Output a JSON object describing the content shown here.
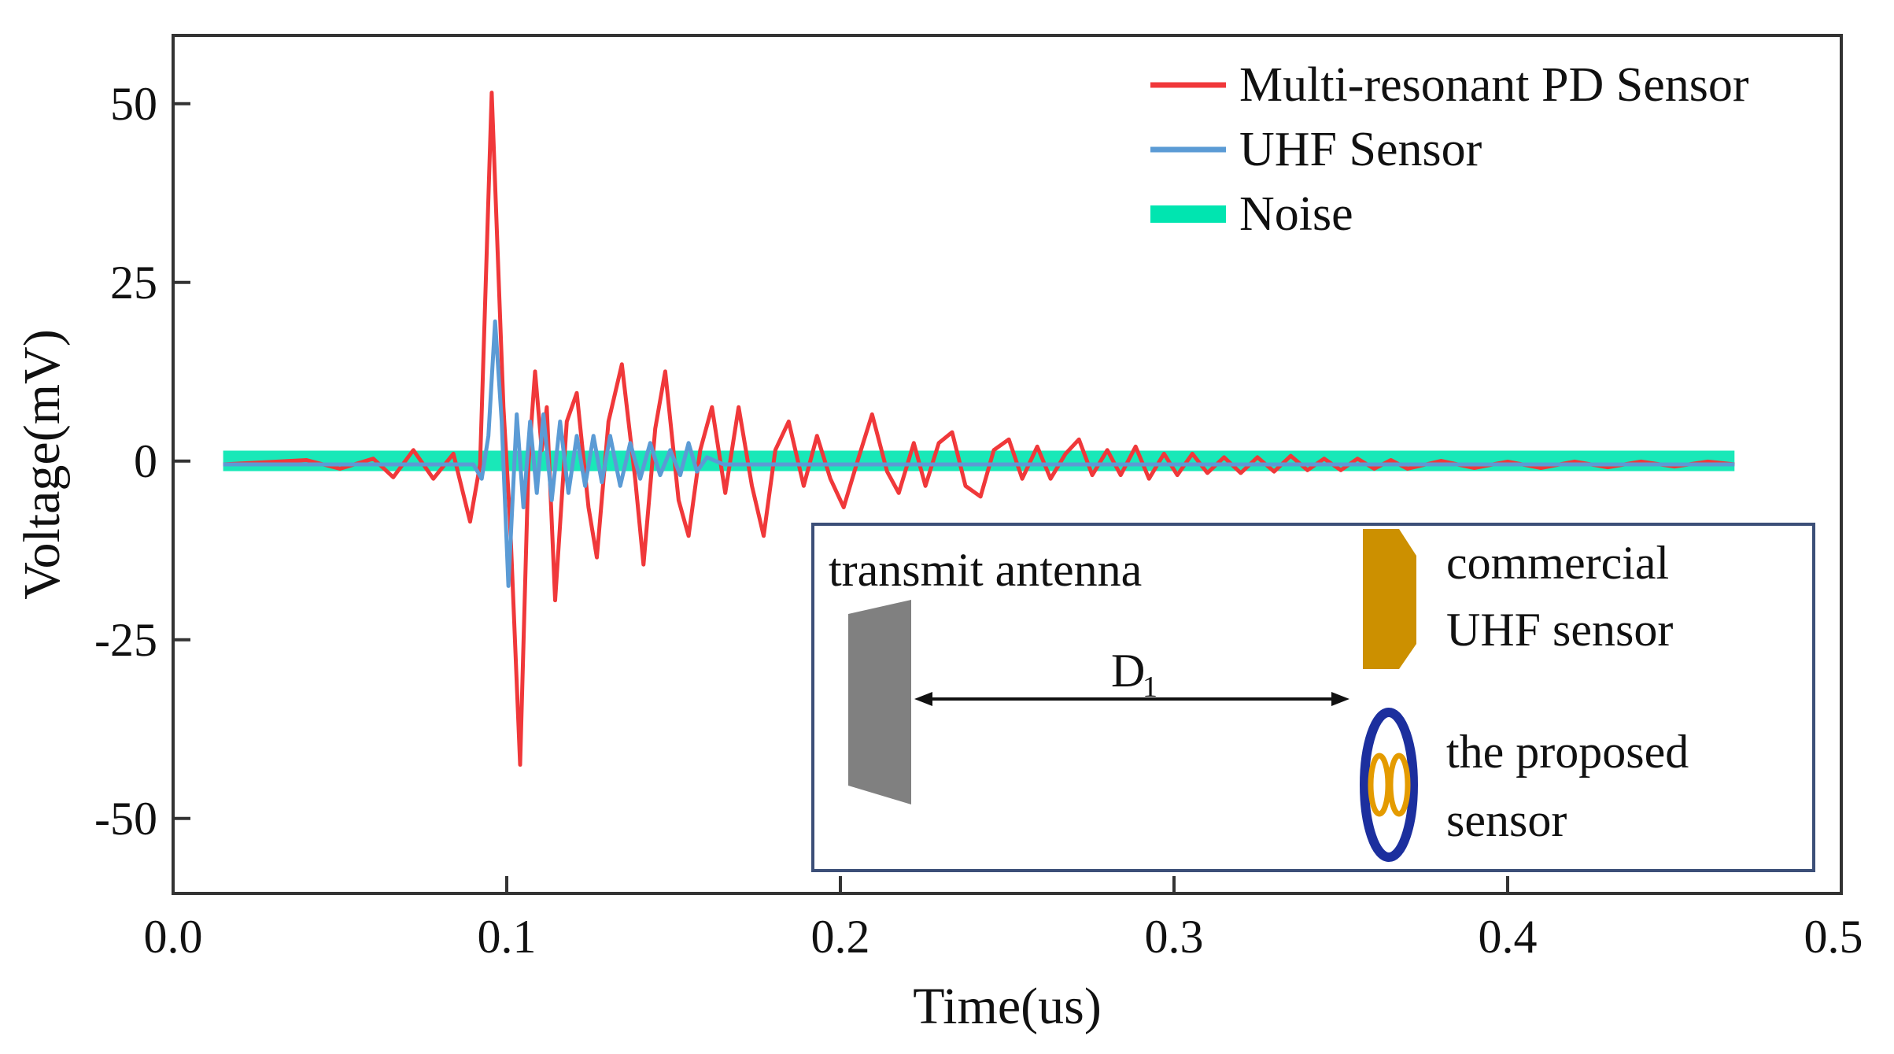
{
  "chart_data": {
    "type": "line",
    "xlabel": "Time(us)",
    "ylabel": "Voltage(mV)",
    "xlim": [
      0.0,
      0.5
    ],
    "ylim": [
      -60,
      60
    ],
    "x_ticks": [
      "0.0",
      "0.1",
      "0.2",
      "0.3",
      "0.4",
      "0.5"
    ],
    "y_ticks": [
      "50",
      "25",
      "0",
      "-25",
      "-50"
    ],
    "grid": false,
    "legend_position": "top-right",
    "series": [
      {
        "name": "Multi-resonant PD Sensor",
        "color": "#f0383a",
        "points": [
          [
            0.015,
            0.0
          ],
          [
            0.04,
            0.6
          ],
          [
            0.05,
            -0.6
          ],
          [
            0.06,
            0.8
          ],
          [
            0.066,
            -1.8
          ],
          [
            0.072,
            2.0
          ],
          [
            0.078,
            -2.0
          ],
          [
            0.084,
            1.5
          ],
          [
            0.089,
            -8.0
          ],
          [
            0.092,
            0.0
          ],
          [
            0.0955,
            52.0
          ],
          [
            0.099,
            8.0
          ],
          [
            0.101,
            -8.0
          ],
          [
            0.104,
            -42.0
          ],
          [
            0.1065,
            0.0
          ],
          [
            0.1085,
            13.0
          ],
          [
            0.1105,
            2.0
          ],
          [
            0.112,
            8.0
          ],
          [
            0.1145,
            -19.0
          ],
          [
            0.118,
            6.0
          ],
          [
            0.121,
            10.0
          ],
          [
            0.1245,
            -6.0
          ],
          [
            0.127,
            -13.0
          ],
          [
            0.1305,
            6.0
          ],
          [
            0.1345,
            14.0
          ],
          [
            0.1385,
            -2.0
          ],
          [
            0.141,
            -14.0
          ],
          [
            0.1445,
            5.0
          ],
          [
            0.1475,
            13.0
          ],
          [
            0.1515,
            -5.0
          ],
          [
            0.1545,
            -10.0
          ],
          [
            0.158,
            2.0
          ],
          [
            0.1615,
            8.0
          ],
          [
            0.1655,
            -4.0
          ],
          [
            0.1695,
            8.0
          ],
          [
            0.1735,
            -3.0
          ],
          [
            0.177,
            -10.0
          ],
          [
            0.1805,
            2.0
          ],
          [
            0.1845,
            6.0
          ],
          [
            0.189,
            -3.0
          ],
          [
            0.193,
            4.0
          ],
          [
            0.197,
            -2.0
          ],
          [
            0.201,
            -6.0
          ],
          [
            0.2055,
            1.0
          ],
          [
            0.2095,
            7.0
          ],
          [
            0.214,
            -1.0
          ],
          [
            0.2175,
            -4.0
          ],
          [
            0.222,
            3.0
          ],
          [
            0.2255,
            -3.0
          ],
          [
            0.2295,
            3.0
          ],
          [
            0.2335,
            4.5
          ],
          [
            0.2375,
            -3.0
          ],
          [
            0.242,
            -4.5
          ],
          [
            0.246,
            2.0
          ],
          [
            0.2505,
            3.5
          ],
          [
            0.2545,
            -2.0
          ],
          [
            0.259,
            2.5
          ],
          [
            0.263,
            -2.0
          ],
          [
            0.2675,
            1.5
          ],
          [
            0.2715,
            3.5
          ],
          [
            0.2755,
            -1.5
          ],
          [
            0.28,
            2.0
          ],
          [
            0.284,
            -1.5
          ],
          [
            0.2885,
            2.5
          ],
          [
            0.2925,
            -2.0
          ],
          [
            0.297,
            1.5
          ],
          [
            0.301,
            -1.5
          ],
          [
            0.3055,
            1.5
          ],
          [
            0.31,
            -1.2
          ],
          [
            0.315,
            1.0
          ],
          [
            0.32,
            -1.2
          ],
          [
            0.325,
            1.0
          ],
          [
            0.33,
            -1.0
          ],
          [
            0.335,
            1.2
          ],
          [
            0.34,
            -0.8
          ],
          [
            0.345,
            0.8
          ],
          [
            0.35,
            -0.8
          ],
          [
            0.355,
            0.8
          ],
          [
            0.36,
            -0.6
          ],
          [
            0.365,
            0.6
          ],
          [
            0.37,
            -0.6
          ],
          [
            0.38,
            0.5
          ],
          [
            0.39,
            -0.5
          ],
          [
            0.4,
            0.4
          ],
          [
            0.41,
            -0.5
          ],
          [
            0.42,
            0.4
          ],
          [
            0.43,
            -0.4
          ],
          [
            0.44,
            0.4
          ],
          [
            0.45,
            -0.3
          ],
          [
            0.46,
            0.4
          ],
          [
            0.468,
            0.0
          ]
        ]
      },
      {
        "name": "UHF Sensor",
        "color": "#5b9bd5",
        "points": [
          [
            0.015,
            0.0
          ],
          [
            0.09,
            0.0
          ],
          [
            0.0925,
            -2.0
          ],
          [
            0.0945,
            4.0
          ],
          [
            0.0965,
            20.0
          ],
          [
            0.0985,
            6.0
          ],
          [
            0.1005,
            -17.0
          ],
          [
            0.103,
            7.0
          ],
          [
            0.105,
            -6.0
          ],
          [
            0.107,
            6.0
          ],
          [
            0.109,
            -4.0
          ],
          [
            0.111,
            7.0
          ],
          [
            0.1135,
            -5.0
          ],
          [
            0.116,
            6.0
          ],
          [
            0.1185,
            -4.0
          ],
          [
            0.121,
            4.0
          ],
          [
            0.1235,
            -3.0
          ],
          [
            0.126,
            4.0
          ],
          [
            0.1285,
            -2.5
          ],
          [
            0.131,
            4.0
          ],
          [
            0.134,
            -3.0
          ],
          [
            0.137,
            3.0
          ],
          [
            0.14,
            -2.0
          ],
          [
            0.143,
            3.0
          ],
          [
            0.146,
            -1.5
          ],
          [
            0.149,
            2.0
          ],
          [
            0.152,
            -1.5
          ],
          [
            0.1545,
            3.0
          ],
          [
            0.157,
            -1.0
          ],
          [
            0.16,
            1.0
          ],
          [
            0.165,
            0.0
          ],
          [
            0.468,
            0.0
          ]
        ]
      },
      {
        "name": "Noise",
        "color": "#00e5b0",
        "points": [
          [
            0.015,
            0.5
          ],
          [
            0.468,
            0.5
          ]
        ]
      }
    ],
    "inset": {
      "labels": [
        "transmit antenna",
        "D",
        "1",
        "commercial",
        "UHF sensor",
        "the proposed",
        "sensor"
      ]
    }
  }
}
